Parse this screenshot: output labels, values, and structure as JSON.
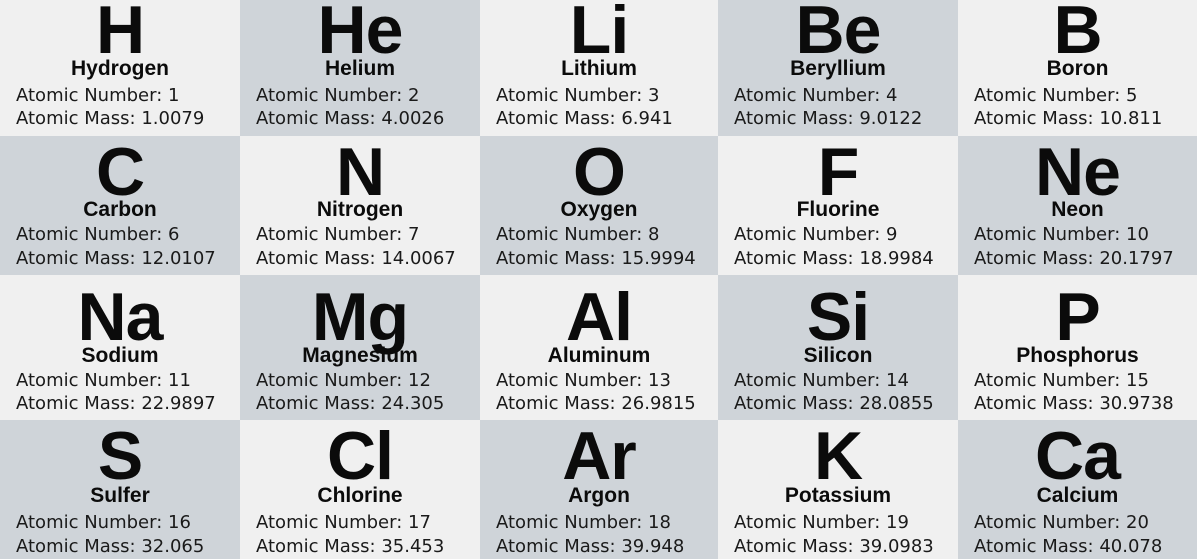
{
  "number_label": "Atomic Number: ",
  "mass_label": "Atomic Mass: ",
  "elements": [
    {
      "symbol": "H",
      "name": "Hydrogen",
      "number": "1",
      "mass": "1.0079"
    },
    {
      "symbol": "He",
      "name": "Helium",
      "number": "2",
      "mass": "4.0026"
    },
    {
      "symbol": "Li",
      "name": "Lithium",
      "number": "3",
      "mass": "6.941"
    },
    {
      "symbol": "Be",
      "name": "Beryllium",
      "number": "4",
      "mass": "9.0122"
    },
    {
      "symbol": "B",
      "name": "Boron",
      "number": "5",
      "mass": "10.811"
    },
    {
      "symbol": "C",
      "name": "Carbon",
      "number": "6",
      "mass": "12.0107"
    },
    {
      "symbol": "N",
      "name": "Nitrogen",
      "number": "7",
      "mass": "14.0067"
    },
    {
      "symbol": "O",
      "name": "Oxygen",
      "number": "8",
      "mass": "15.9994"
    },
    {
      "symbol": "F",
      "name": "Fluorine",
      "number": "9",
      "mass": "18.9984"
    },
    {
      "symbol": "Ne",
      "name": "Neon",
      "number": "10",
      "mass": "20.1797"
    },
    {
      "symbol": "Na",
      "name": "Sodium",
      "number": "11",
      "mass": "22.9897"
    },
    {
      "symbol": "Mg",
      "name": "Magnesium",
      "number": "12",
      "mass": "24.305"
    },
    {
      "symbol": "Al",
      "name": "Aluminum",
      "number": "13",
      "mass": "26.9815"
    },
    {
      "symbol": "Si",
      "name": "Silicon",
      "number": "14",
      "mass": "28.0855"
    },
    {
      "symbol": "P",
      "name": "Phosphorus",
      "number": "15",
      "mass": "30.9738"
    },
    {
      "symbol": "S",
      "name": "Sulfer",
      "number": "16",
      "mass": "32.065"
    },
    {
      "symbol": "Cl",
      "name": "Chlorine",
      "number": "17",
      "mass": "35.453"
    },
    {
      "symbol": "Ar",
      "name": "Argon",
      "number": "18",
      "mass": "39.948"
    },
    {
      "symbol": "K",
      "name": "Potassium",
      "number": "19",
      "mass": "39.0983"
    },
    {
      "symbol": "Ca",
      "name": "Calcium",
      "number": "20",
      "mass": "40.078"
    }
  ],
  "colors": {
    "light_cell": "#f0f0f0",
    "dark_cell": "#cfd4d9",
    "text": "#0b0b0b"
  }
}
